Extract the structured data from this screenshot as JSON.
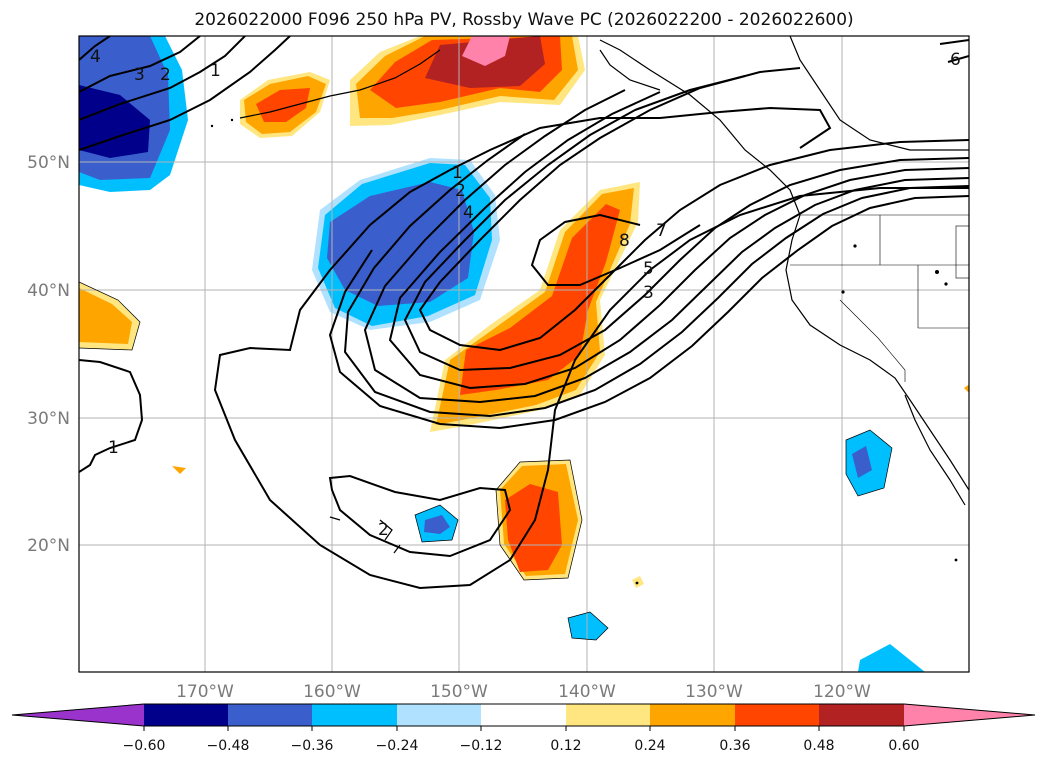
{
  "title": "2026022000 F096 250 hPa PV, Rossby Wave PC (2026022200 - 2026022600)",
  "lat_labels": [
    "50°N",
    "40°N",
    "30°N",
    "20°N"
  ],
  "lon_labels": [
    "170°W",
    "160°W",
    "150°W",
    "140°W",
    "130°W",
    "120°W"
  ],
  "colorbar": {
    "ticks": [
      "−0.60",
      "−0.48",
      "−0.36",
      "−0.24",
      "−0.12",
      "0.12",
      "0.24",
      "0.36",
      "0.48",
      "0.60"
    ],
    "colors": [
      "#9933cc",
      "#00008b",
      "#3a5fcd",
      "#00bfff",
      "#b0e2ff",
      "#ffffff",
      "#ffe680",
      "#ffa500",
      "#ff4500",
      "#b22222",
      "#ff82ab"
    ]
  },
  "contour_labels": [
    "4",
    "3",
    "2",
    "1",
    "1",
    "2",
    "4",
    "8",
    "7",
    "5",
    "3",
    "1",
    "2",
    "6"
  ]
}
